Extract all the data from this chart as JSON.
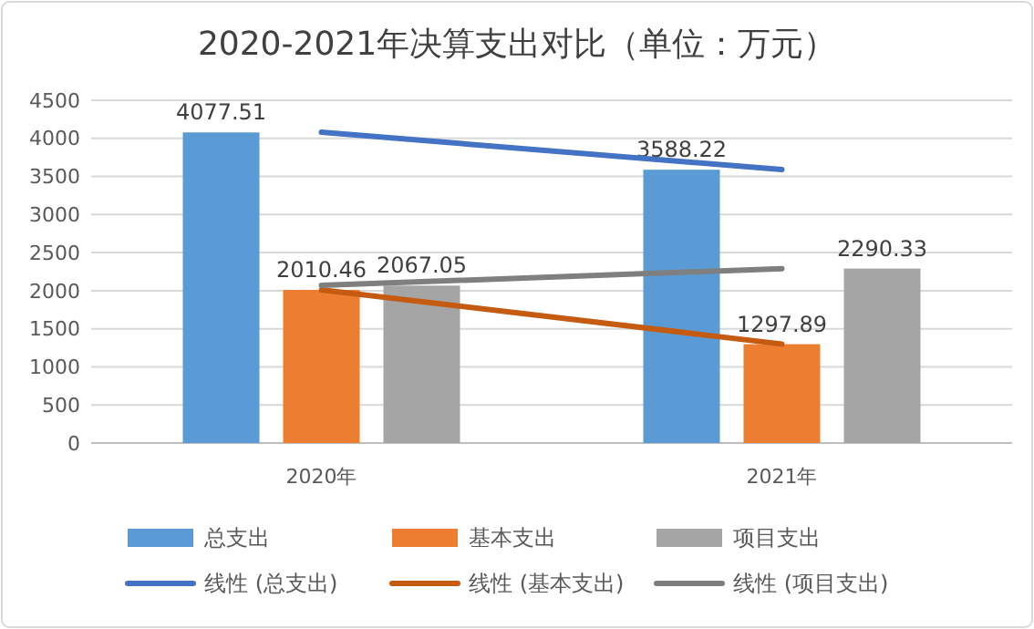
{
  "chart_data": {
    "type": "bar",
    "title": "2020-2021年决算支出对比（单位：万元）",
    "categories": [
      "2020年",
      "2021年"
    ],
    "series": [
      {
        "name": "总支出",
        "color": "#5b9bd5",
        "values": [
          4077.51,
          3588.22
        ],
        "value_labels": [
          "4077.51",
          "3588.22"
        ]
      },
      {
        "name": "基本支出",
        "color": "#ed7d31",
        "values": [
          2010.46,
          1297.89
        ],
        "value_labels": [
          "2010.46",
          "1297.89"
        ]
      },
      {
        "name": "项目支出",
        "color": "#a5a5a5",
        "values": [
          2067.05,
          2290.33
        ],
        "value_labels": [
          "2067.05",
          "2290.33"
        ]
      },
      {
        "name": "线性 (总支出)",
        "type": "line",
        "color": "#4472c4",
        "values": [
          4080,
          3590
        ]
      },
      {
        "name": "线性 (基本支出)",
        "type": "line",
        "color": "#c55a11",
        "values": [
          2010,
          1300
        ]
      },
      {
        "name": "线性 (项目支出)",
        "type": "line",
        "color": "#7f7f7f",
        "values": [
          2070,
          2290
        ]
      }
    ],
    "ylim": [
      0,
      4500
    ],
    "yticks": [
      0,
      500,
      1000,
      1500,
      2000,
      2500,
      3000,
      3500,
      4000,
      4500
    ],
    "grid": "y",
    "legend": "bottom"
  }
}
